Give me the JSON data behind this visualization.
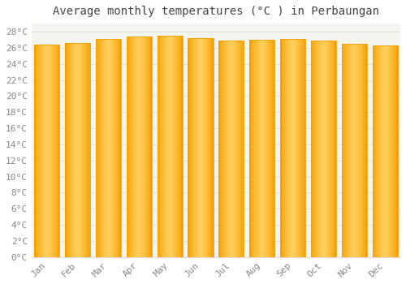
{
  "months": [
    "Jan",
    "Feb",
    "Mar",
    "Apr",
    "May",
    "Jun",
    "Jul",
    "Aug",
    "Sep",
    "Oct",
    "Nov",
    "Dec"
  ],
  "values": [
    26.4,
    26.6,
    27.1,
    27.4,
    27.5,
    27.2,
    26.9,
    27.0,
    27.1,
    26.9,
    26.5,
    26.3
  ],
  "bar_color_center": "#FFD060",
  "bar_color_edge": "#F5A000",
  "title": "Average monthly temperatures (°C ) in Perbaungan",
  "ylim": [
    0,
    29
  ],
  "ytick_step": 2,
  "background_color": "#FFFFFF",
  "plot_bg_color": "#F5F5F0",
  "grid_color": "#DDDDDD",
  "title_fontsize": 10,
  "tick_fontsize": 8,
  "font_family": "monospace",
  "tick_color": "#888888"
}
